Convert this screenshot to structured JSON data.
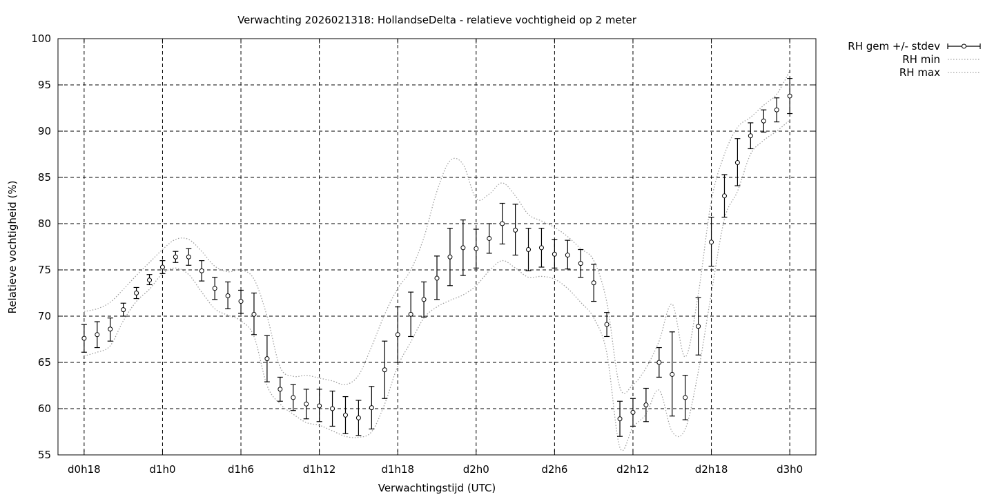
{
  "chart_data": {
    "type": "line",
    "title": "Verwachting 2026021318: HollandseDelta - relatieve vochtigheid op 2 meter",
    "xlabel": "Verwachtingstijd (UTC)",
    "ylabel": "Relatieve vochtigheid (%)",
    "xlim": [
      -2,
      56
    ],
    "ylim": [
      55,
      100
    ],
    "x_ticks": [
      {
        "x": 0,
        "label": "d0h18"
      },
      {
        "x": 6,
        "label": "d1h0"
      },
      {
        "x": 12,
        "label": "d1h6"
      },
      {
        "x": 18,
        "label": "d1h12"
      },
      {
        "x": 24,
        "label": "d1h18"
      },
      {
        "x": 30,
        "label": "d2h0"
      },
      {
        "x": 36,
        "label": "d2h6"
      },
      {
        "x": 42,
        "label": "d2h12"
      },
      {
        "x": 48,
        "label": "d2h18"
      },
      {
        "x": 54,
        "label": "d3h0"
      }
    ],
    "y_ticks": [
      55,
      60,
      65,
      70,
      75,
      80,
      85,
      90,
      95,
      100
    ],
    "grid": true,
    "legend_position": "outside-top-right",
    "series": [
      {
        "name": "RH gem +/- stdev",
        "style": "errorbars",
        "x": [
          0,
          1,
          2,
          3,
          4,
          5,
          6,
          7,
          8,
          9,
          10,
          11,
          12,
          13,
          14,
          15,
          16,
          17,
          18,
          19,
          20,
          21,
          22,
          23,
          24,
          25,
          26,
          27,
          28,
          29,
          30,
          31,
          32,
          33,
          34,
          35,
          36,
          37,
          38,
          39,
          40,
          41,
          42,
          43,
          44,
          45,
          46,
          47,
          48,
          49,
          50,
          51,
          52,
          53,
          54
        ],
        "mean": [
          67.6,
          68.0,
          68.6,
          70.7,
          72.5,
          73.9,
          75.3,
          76.4,
          76.4,
          74.9,
          73.0,
          72.2,
          71.6,
          70.2,
          65.4,
          62.1,
          61.2,
          60.5,
          60.3,
          60.0,
          59.3,
          59.0,
          60.1,
          64.2,
          68.0,
          70.2,
          71.8,
          74.1,
          76.4,
          77.4,
          77.3,
          78.4,
          80.0,
          79.3,
          77.2,
          77.4,
          76.7,
          76.6,
          75.7,
          73.6,
          69.1,
          58.9,
          59.6,
          60.4,
          65.0,
          63.7,
          61.2,
          68.9,
          78.0,
          83.0,
          86.6,
          89.5,
          91.1,
          92.3,
          93.8
        ],
        "err_low": [
          66.1,
          66.6,
          67.3,
          70.0,
          71.9,
          73.4,
          74.6,
          75.8,
          75.5,
          73.8,
          71.8,
          70.8,
          70.3,
          68.0,
          62.9,
          60.8,
          59.8,
          58.9,
          58.6,
          58.1,
          57.3,
          57.1,
          57.8,
          61.1,
          65.0,
          67.8,
          69.9,
          71.8,
          73.3,
          74.4,
          75.2,
          76.8,
          77.8,
          76.6,
          74.9,
          75.3,
          75.2,
          75.1,
          74.2,
          71.6,
          67.8,
          57.0,
          58.1,
          58.6,
          63.4,
          59.2,
          58.8,
          65.8,
          75.4,
          80.7,
          84.1,
          88.1,
          89.9,
          91.0,
          91.9
        ],
        "err_high": [
          69.1,
          69.4,
          69.8,
          71.4,
          73.1,
          74.5,
          76.0,
          77.0,
          77.3,
          76.0,
          74.2,
          73.7,
          72.8,
          72.5,
          67.9,
          63.4,
          62.6,
          62.1,
          62.1,
          61.9,
          61.3,
          60.9,
          62.4,
          67.3,
          71.0,
          72.6,
          73.7,
          76.5,
          79.5,
          80.4,
          79.4,
          80.0,
          82.2,
          82.1,
          79.5,
          79.5,
          78.3,
          78.2,
          77.2,
          75.6,
          70.4,
          60.8,
          61.1,
          62.2,
          66.6,
          68.3,
          63.6,
          72.0,
          80.7,
          85.3,
          89.2,
          90.9,
          92.3,
          93.6,
          95.7
        ]
      },
      {
        "name": "RH min",
        "style": "dotted",
        "x": [
          0,
          1,
          2,
          3,
          4,
          5,
          6,
          7,
          8,
          9,
          10,
          11,
          12,
          13,
          14,
          15,
          16,
          17,
          18,
          19,
          20,
          21,
          22,
          23,
          24,
          25,
          26,
          27,
          28,
          29,
          30,
          31,
          32,
          33,
          34,
          35,
          36,
          37,
          38,
          39,
          40,
          41,
          42,
          43,
          44,
          45,
          46,
          47,
          48,
          49,
          50,
          51,
          52,
          53,
          54
        ],
        "values": [
          65.7,
          66.1,
          66.8,
          69.5,
          71.6,
          72.9,
          74.6,
          75.2,
          74.5,
          72.6,
          70.8,
          70.1,
          69.5,
          67.8,
          62.5,
          60.5,
          59.4,
          58.5,
          58.2,
          57.6,
          57.0,
          56.9,
          57.5,
          60.5,
          64.6,
          67.2,
          69.8,
          71.0,
          71.7,
          72.3,
          73.3,
          74.9,
          76.0,
          75.2,
          74.2,
          74.3,
          74.0,
          73.0,
          71.5,
          69.8,
          66.0,
          55.8,
          58.0,
          59.4,
          62.0,
          57.5,
          57.8,
          64.0,
          72.5,
          80.5,
          83.5,
          87.5,
          89.0,
          90.0,
          91.2
        ]
      },
      {
        "name": "RH max",
        "style": "dotted",
        "x": [
          0,
          1,
          2,
          3,
          4,
          5,
          6,
          7,
          8,
          9,
          10,
          11,
          12,
          13,
          14,
          15,
          16,
          17,
          18,
          19,
          20,
          21,
          22,
          23,
          24,
          25,
          26,
          27,
          28,
          29,
          30,
          31,
          32,
          33,
          34,
          35,
          36,
          37,
          38,
          39,
          40,
          41,
          42,
          43,
          44,
          45,
          46,
          47,
          48,
          49,
          50,
          51,
          52,
          53,
          54
        ],
        "values": [
          70.5,
          70.8,
          71.5,
          72.9,
          74.4,
          75.8,
          77.2,
          78.3,
          78.3,
          77.0,
          75.4,
          74.8,
          75.0,
          74.0,
          70.0,
          64.5,
          63.5,
          63.6,
          63.3,
          63.0,
          62.6,
          63.6,
          66.7,
          70.2,
          73.0,
          75.0,
          78.5,
          83.5,
          86.8,
          86.4,
          82.7,
          83.2,
          84.4,
          83.0,
          81.0,
          80.3,
          79.6,
          78.6,
          77.3,
          76.0,
          71.5,
          62.3,
          62.6,
          64.4,
          67.3,
          71.3,
          65.6,
          72.4,
          82.5,
          87.5,
          90.4,
          91.5,
          92.8,
          94.0,
          96.5
        ]
      }
    ]
  }
}
